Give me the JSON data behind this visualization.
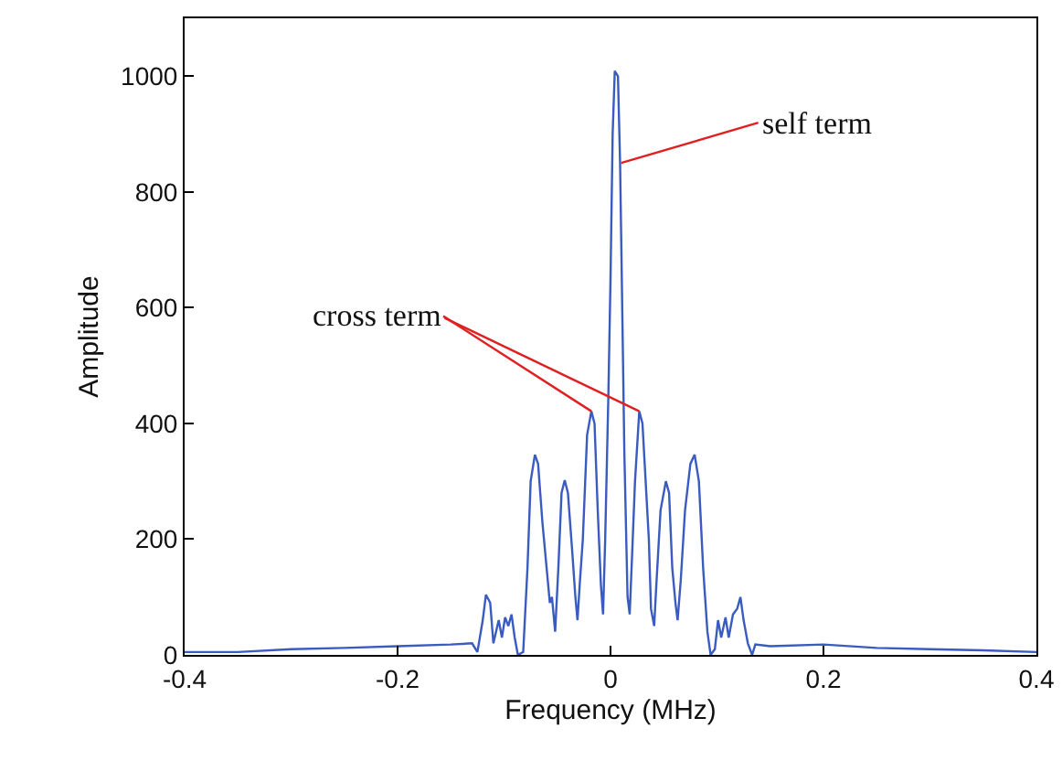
{
  "chart_data": {
    "type": "line",
    "xlabel": "Frequency (MHz)",
    "ylabel": "Amplitude",
    "xlim": [
      -0.4,
      0.4
    ],
    "xticks": [
      -0.4,
      -0.2,
      0,
      0.2,
      0.4
    ],
    "ylim": [
      0,
      1100
    ],
    "yticks": [
      0,
      200,
      400,
      600,
      800,
      1000
    ],
    "grid": false,
    "marker": "none",
    "line_style": "solid",
    "annotations": [
      {
        "text": "self term",
        "x": 0.01,
        "y": 850
      },
      {
        "text": "cross term",
        "x": -0.018,
        "y": 421
      }
    ],
    "series": [
      {
        "color": "#3a5bbf",
        "x": [
          -0.4,
          -0.35,
          -0.3,
          -0.25,
          -0.2,
          -0.15,
          -0.13,
          -0.125,
          -0.12,
          -0.117,
          -0.113,
          -0.11,
          -0.105,
          -0.102,
          -0.099,
          -0.096,
          -0.093,
          -0.09,
          -0.087,
          -0.082,
          -0.078,
          -0.075,
          -0.071,
          -0.068,
          -0.064,
          -0.06,
          -0.057,
          -0.055,
          -0.052,
          -0.049,
          -0.046,
          -0.043,
          -0.04,
          -0.036,
          -0.033,
          -0.031,
          -0.029,
          -0.026,
          -0.022,
          -0.018,
          -0.015,
          -0.012,
          -0.009,
          -0.007,
          -0.005,
          -0.002,
          0,
          0.002,
          0.004,
          0.007,
          0.009,
          0.011,
          0.013,
          0.016,
          0.018,
          0.02,
          0.023,
          0.027,
          0.03,
          0.033,
          0.036,
          0.038,
          0.041,
          0.043,
          0.047,
          0.052,
          0.055,
          0.058,
          0.061,
          0.063,
          0.066,
          0.07,
          0.075,
          0.079,
          0.083,
          0.087,
          0.091,
          0.094,
          0.098,
          0.101,
          0.104,
          0.108,
          0.111,
          0.115,
          0.119,
          0.122,
          0.125,
          0.129,
          0.133,
          0.136,
          0.15,
          0.2,
          0.25,
          0.3,
          0.35,
          0.4
        ],
        "values": [
          5,
          5,
          10,
          12,
          15,
          18,
          20,
          5,
          60,
          104,
          90,
          20,
          60,
          30,
          65,
          50,
          70,
          30,
          0,
          5,
          150,
          300,
          346,
          330,
          230,
          150,
          90,
          100,
          40,
          150,
          280,
          302,
          280,
          180,
          100,
          60,
          120,
          200,
          380,
          421,
          400,
          250,
          120,
          70,
          200,
          450,
          650,
          900,
          1009,
          1000,
          850,
          600,
          350,
          100,
          70,
          160,
          300,
          421,
          400,
          300,
          200,
          80,
          50,
          120,
          250,
          300,
          280,
          150,
          90,
          60,
          130,
          250,
          330,
          346,
          300,
          150,
          40,
          0,
          10,
          60,
          30,
          65,
          30,
          70,
          80,
          100,
          60,
          20,
          0,
          18,
          15,
          18,
          12,
          10,
          8,
          5
        ]
      }
    ]
  }
}
